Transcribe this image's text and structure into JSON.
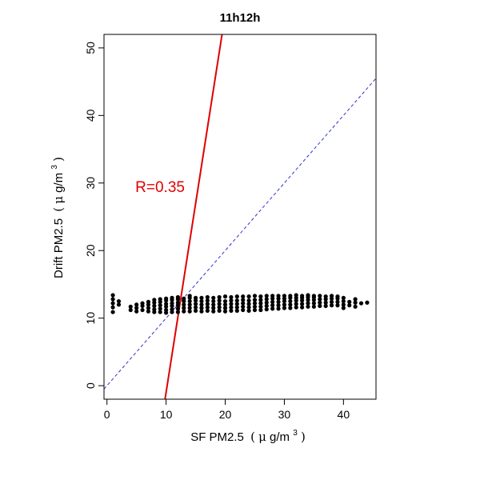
{
  "chart_data": {
    "type": "scatter",
    "title": "11h12h",
    "xlabel": {
      "text": "SF PM2.5",
      "unit_open": "(",
      "mu": "μ",
      "unit_rest": "g/m",
      "sup": "3",
      "unit_close": ")"
    },
    "ylabel": {
      "text": "Drift PM2.5",
      "unit_open": "(",
      "mu": "μ",
      "unit_rest": "g/m",
      "sup": "3",
      "unit_close": ")"
    },
    "xlim": [
      -0.5,
      45.5
    ],
    "ylim": [
      -2,
      52
    ],
    "x_ticks": [
      0,
      10,
      20,
      30,
      40
    ],
    "y_ticks": [
      0,
      10,
      20,
      30,
      40,
      50
    ],
    "annotation": {
      "text": "R=0.35",
      "x": 4.8,
      "y": 29.5,
      "color": "#e00000"
    },
    "identity_line": {
      "intercept": 0,
      "slope": 1,
      "color": "#3333cc",
      "style": "dashed"
    },
    "fit_line": {
      "intercept": -57.0,
      "slope": 5.6,
      "color": "#e00000"
    },
    "points_summary": {
      "x_range": [
        1,
        44
      ],
      "y_range": [
        10.8,
        13.5
      ],
      "point_color": "#000000",
      "points": [
        [
          1,
          10.9
        ],
        [
          1,
          11.6
        ],
        [
          1,
          12.2
        ],
        [
          1,
          12.8
        ],
        [
          1,
          13.4
        ],
        [
          2,
          12.0
        ],
        [
          2,
          12.5
        ],
        [
          4,
          11.2
        ],
        [
          4,
          11.7
        ],
        [
          5,
          11.0
        ],
        [
          5,
          11.5
        ],
        [
          5,
          12.0
        ],
        [
          6,
          11.2
        ],
        [
          6,
          11.8
        ],
        [
          6,
          12.2
        ],
        [
          7,
          11.0
        ],
        [
          7,
          11.5
        ],
        [
          7,
          12.0
        ],
        [
          7,
          12.4
        ],
        [
          8,
          10.9
        ],
        [
          8,
          11.3
        ],
        [
          8,
          11.8
        ],
        [
          8,
          12.3
        ],
        [
          8,
          12.7
        ],
        [
          9,
          10.9
        ],
        [
          9,
          11.4
        ],
        [
          9,
          11.9
        ],
        [
          9,
          12.4
        ],
        [
          9,
          12.8
        ],
        [
          10,
          10.8
        ],
        [
          10,
          11.2
        ],
        [
          10,
          11.7
        ],
        [
          10,
          12.1
        ],
        [
          10,
          12.6
        ],
        [
          10,
          12.9
        ],
        [
          11,
          10.9
        ],
        [
          11,
          11.3
        ],
        [
          11,
          11.8
        ],
        [
          11,
          12.2
        ],
        [
          11,
          12.7
        ],
        [
          11,
          13.0
        ],
        [
          12,
          10.9
        ],
        [
          12,
          11.4
        ],
        [
          12,
          11.9
        ],
        [
          12,
          12.3
        ],
        [
          12,
          12.8
        ],
        [
          12,
          13.1
        ],
        [
          13,
          11.0
        ],
        [
          13,
          11.5
        ],
        [
          13,
          12.0
        ],
        [
          13,
          12.5
        ],
        [
          13,
          12.9
        ],
        [
          14,
          11.0
        ],
        [
          14,
          11.5
        ],
        [
          14,
          12.0
        ],
        [
          14,
          12.5
        ],
        [
          14,
          13.0
        ],
        [
          14,
          13.3
        ],
        [
          15,
          11.1
        ],
        [
          15,
          11.6
        ],
        [
          15,
          12.1
        ],
        [
          15,
          12.6
        ],
        [
          15,
          13.0
        ],
        [
          16,
          11.0
        ],
        [
          16,
          11.5
        ],
        [
          16,
          12.0
        ],
        [
          16,
          12.5
        ],
        [
          16,
          13.0
        ],
        [
          17,
          11.1
        ],
        [
          17,
          11.6
        ],
        [
          17,
          12.1
        ],
        [
          17,
          12.6
        ],
        [
          17,
          13.1
        ],
        [
          18,
          11.0
        ],
        [
          18,
          11.5
        ],
        [
          18,
          12.0
        ],
        [
          18,
          12.5
        ],
        [
          18,
          13.0
        ],
        [
          19,
          11.1
        ],
        [
          19,
          11.6
        ],
        [
          19,
          12.1
        ],
        [
          19,
          12.6
        ],
        [
          19,
          13.1
        ],
        [
          20,
          11.0
        ],
        [
          20,
          11.5
        ],
        [
          20,
          12.0
        ],
        [
          20,
          12.5
        ],
        [
          20,
          13.2
        ],
        [
          21,
          11.1
        ],
        [
          21,
          11.6
        ],
        [
          21,
          12.1
        ],
        [
          21,
          12.6
        ],
        [
          21,
          13.1
        ],
        [
          22,
          11.1
        ],
        [
          22,
          11.6
        ],
        [
          22,
          12.1
        ],
        [
          22,
          12.6
        ],
        [
          22,
          13.2
        ],
        [
          23,
          11.2
        ],
        [
          23,
          11.7
        ],
        [
          23,
          12.2
        ],
        [
          23,
          12.7
        ],
        [
          23,
          13.2
        ],
        [
          24,
          11.1
        ],
        [
          24,
          11.6
        ],
        [
          24,
          12.1
        ],
        [
          24,
          12.6
        ],
        [
          24,
          13.2
        ],
        [
          25,
          11.2
        ],
        [
          25,
          11.7
        ],
        [
          25,
          12.2
        ],
        [
          25,
          12.7
        ],
        [
          25,
          13.3
        ],
        [
          26,
          11.2
        ],
        [
          26,
          11.7
        ],
        [
          26,
          12.2
        ],
        [
          26,
          12.7
        ],
        [
          26,
          13.2
        ],
        [
          27,
          11.3
        ],
        [
          27,
          11.8
        ],
        [
          27,
          12.3
        ],
        [
          27,
          12.8
        ],
        [
          27,
          13.3
        ],
        [
          28,
          11.4
        ],
        [
          28,
          11.9
        ],
        [
          28,
          12.4
        ],
        [
          28,
          12.9
        ],
        [
          28,
          13.3
        ],
        [
          29,
          11.4
        ],
        [
          29,
          11.9
        ],
        [
          29,
          12.4
        ],
        [
          29,
          12.9
        ],
        [
          29,
          13.3
        ],
        [
          30,
          11.5
        ],
        [
          30,
          12.0
        ],
        [
          30,
          12.5
        ],
        [
          30,
          12.9
        ],
        [
          30,
          13.3
        ],
        [
          31,
          11.5
        ],
        [
          31,
          12.0
        ],
        [
          31,
          12.5
        ],
        [
          31,
          13.0
        ],
        [
          31,
          13.3
        ],
        [
          32,
          11.6
        ],
        [
          32,
          12.1
        ],
        [
          32,
          12.6
        ],
        [
          32,
          13.0
        ],
        [
          32,
          13.4
        ],
        [
          33,
          11.6
        ],
        [
          33,
          12.1
        ],
        [
          33,
          12.6
        ],
        [
          33,
          13.0
        ],
        [
          33,
          13.3
        ],
        [
          34,
          11.7
        ],
        [
          34,
          12.2
        ],
        [
          34,
          12.7
        ],
        [
          34,
          13.1
        ],
        [
          34,
          13.4
        ],
        [
          35,
          11.7
        ],
        [
          35,
          12.2
        ],
        [
          35,
          12.7
        ],
        [
          35,
          13.1
        ],
        [
          35,
          13.3
        ],
        [
          36,
          11.8
        ],
        [
          36,
          12.3
        ],
        [
          36,
          12.8
        ],
        [
          36,
          13.3
        ],
        [
          37,
          11.8
        ],
        [
          37,
          12.3
        ],
        [
          37,
          12.8
        ],
        [
          37,
          13.2
        ],
        [
          38,
          11.9
        ],
        [
          38,
          12.4
        ],
        [
          38,
          12.9
        ],
        [
          38,
          13.3
        ],
        [
          39,
          11.9
        ],
        [
          39,
          12.4
        ],
        [
          39,
          12.9
        ],
        [
          39,
          13.2
        ],
        [
          40,
          11.5
        ],
        [
          40,
          12.0
        ],
        [
          40,
          12.5
        ],
        [
          40,
          13.0
        ],
        [
          41,
          11.9
        ],
        [
          41,
          12.4
        ],
        [
          42,
          11.7
        ],
        [
          42,
          12.3
        ],
        [
          42,
          12.8
        ],
        [
          43,
          12.2
        ],
        [
          44,
          12.3
        ]
      ]
    }
  }
}
